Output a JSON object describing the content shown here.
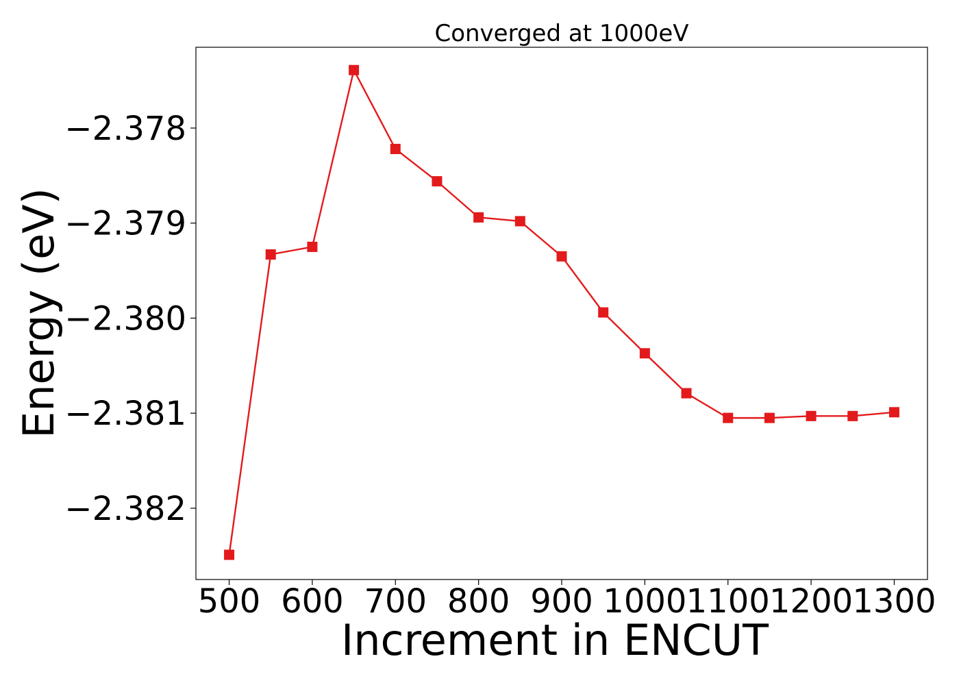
{
  "chart_data": {
    "type": "line",
    "title": "Converged at 1000eV",
    "xlabel": "Increment in ENCUT",
    "ylabel": "Energy (eV)",
    "xlim": [
      460,
      1340
    ],
    "ylim": [
      -2.38275,
      -2.37715
    ],
    "x_ticks": [
      500,
      600,
      700,
      800,
      900,
      1000,
      1100,
      1200,
      1300
    ],
    "x_tick_labels": [
      "500",
      "600",
      "700",
      "800",
      "900",
      "1000",
      "1100",
      "1200",
      "1300"
    ],
    "y_ticks": [
      -2.378,
      -2.379,
      -2.38,
      -2.381,
      -2.382
    ],
    "y_tick_labels": [
      "−2.378",
      "−2.379",
      "−2.380",
      "−2.381",
      "−2.382"
    ],
    "grid": false,
    "series": [
      {
        "color": "#e31a1c",
        "marker": "square",
        "x": [
          500,
          550,
          600,
          650,
          700,
          750,
          800,
          850,
          900,
          950,
          1000,
          1050,
          1100,
          1150,
          1200,
          1250,
          1300
        ],
        "values": [
          -2.38249,
          -2.37933,
          -2.37925,
          -2.37739,
          -2.37822,
          -2.37856,
          -2.37894,
          -2.37898,
          -2.37935,
          -2.37994,
          -2.38037,
          -2.38079,
          -2.38105,
          -2.38105,
          -2.38103,
          -2.38103,
          -2.38099
        ]
      }
    ]
  }
}
